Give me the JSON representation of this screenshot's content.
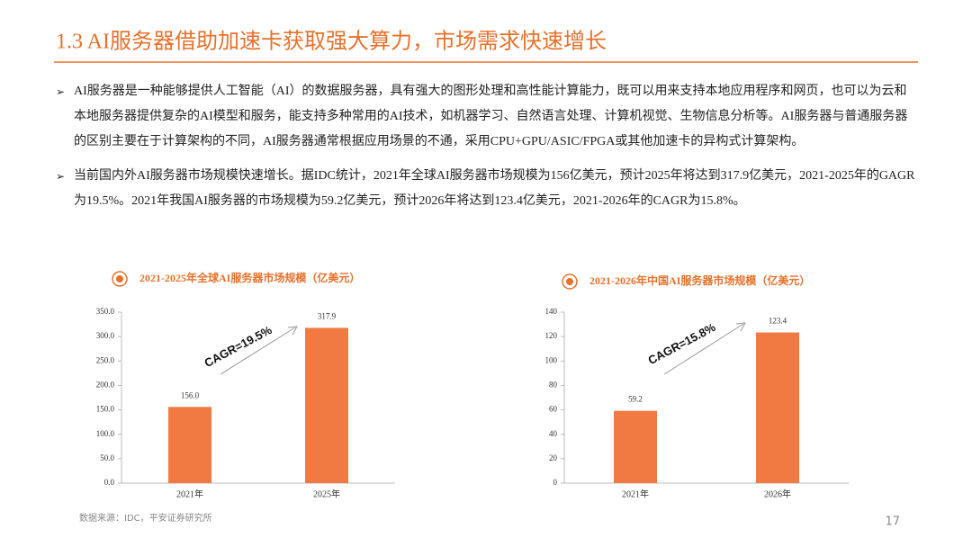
{
  "header": {
    "title": "1.3 AI服务器借助加速卡获取强大算力，市场需求快速增长"
  },
  "bullets": [
    "AI服务器是一种能够提供人工智能（AI）的数据服务器，具有强大的图形处理和高性能计算能力，既可以用来支持本地应用程序和网页，也可以为云和本地服务器提供复杂的AI模型和服务，能支持多种常用的AI技术，如机器学习、自然语言处理、计算机视觉、生物信息分析等。AI服务器与普通服务器的区别主要在于计算架构的不同，AI服务器通常根据应用场景的不通，采用CPU+GPU/ASIC/FPGA或其他加速卡的异构式计算架构。",
    "当前国内外AI服务器市场规模快速增长。据IDC统计，2021年全球AI服务器市场规模为156亿美元，预计2025年将达到317.9亿美元，2021-2025年的GAGR为19.5%。2021年我国AI服务器的市场规模为59.2亿美元，预计2026年将达到123.4亿美元，2021-2026年的CAGR为15.8%。"
  ],
  "chart_data": [
    {
      "type": "bar",
      "title": "2021-2025年全球AI服务器市场规模（亿美元）",
      "categories": [
        "2021年",
        "2025年"
      ],
      "values": [
        156.0,
        317.9
      ],
      "value_labels": [
        "156.0",
        "317.9"
      ],
      "color": "#f07a41",
      "ylim": [
        0,
        350
      ],
      "yticks": [
        {
          "value": 0,
          "label": "0.0"
        },
        {
          "value": 50,
          "label": "50.0"
        },
        {
          "value": 100,
          "label": "100.0"
        },
        {
          "value": 150,
          "label": "150.0"
        },
        {
          "value": 200,
          "label": "200.0"
        },
        {
          "value": 250,
          "label": "250.0"
        },
        {
          "value": 300,
          "label": "300.0"
        },
        {
          "value": 350,
          "label": "350.0"
        }
      ],
      "annotation": "CAGR=19.5%"
    },
    {
      "type": "bar",
      "title": "2021-2026年中国AI服务器市场规模（亿美元）",
      "categories": [
        "2021年",
        "2026年"
      ],
      "values": [
        59.2,
        123.4
      ],
      "color": "#f07a41",
      "ylim": [
        0,
        140
      ],
      "yticks": [
        0,
        20,
        40,
        60,
        80,
        100,
        120,
        140
      ],
      "annotation": "CAGR=15.8%"
    }
  ],
  "source": "数据来源：IDC，平安证券研究所",
  "page_number": "17"
}
